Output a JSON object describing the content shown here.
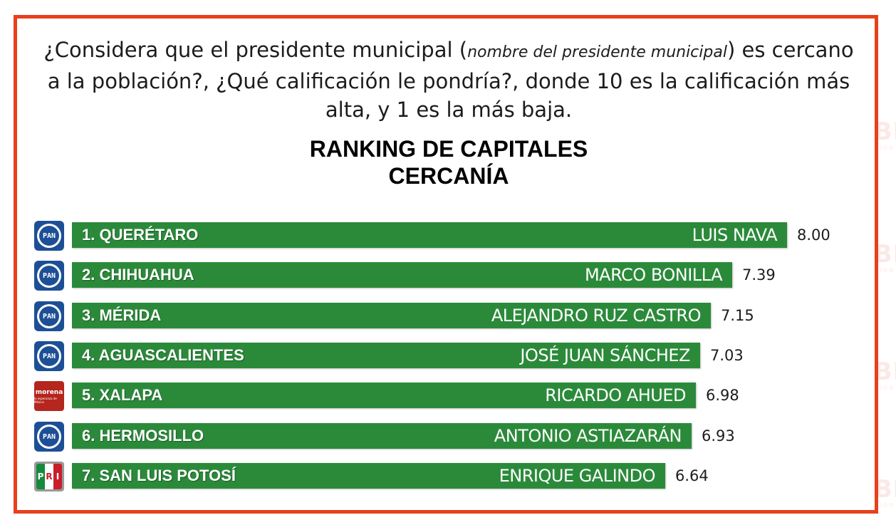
{
  "question": {
    "part1": "¿Considera que el presidente municipal (",
    "italic": "nombre del presidente municipal",
    "part2": ") es cercano a la población?, ¿Qué calificación le pondría?, donde 10 es la calificación más alta, y 1 es la más baja."
  },
  "watermark": {
    "text": "RUBRUM",
    "sub": "INFORMACIÓN QUE DA PODER"
  },
  "colors": {
    "bar": "#2b8a3a",
    "frame": "#e8401c",
    "pan": "#1d4f96",
    "morena": "#b5261e"
  },
  "chart_data": {
    "type": "bar",
    "orientation": "horizontal",
    "title": "RANKING DE CAPITALES",
    "subtitle": "CERCANÍA",
    "xlim": [
      0,
      8
    ],
    "categories": [
      "1. QUERÉTARO",
      "2. CHIHUAHUA",
      "3. MÉRIDA",
      "4. AGUASCALIENTES",
      "5. XALAPA",
      "6. HERMOSILLO",
      "7. SAN LUIS POTOSÍ"
    ],
    "labels": [
      "LUIS NAVA",
      "MARCO BONILLA",
      "ALEJANDRO RUZ CASTRO",
      "JOSÉ JUAN SÁNCHEZ",
      "RICARDO AHUED",
      "ANTONIO ASTIAZARÁN",
      "ENRIQUE GALINDO"
    ],
    "values": [
      8.0,
      7.39,
      7.15,
      7.03,
      6.98,
      6.93,
      6.64
    ],
    "value_labels": [
      "8.00",
      "7.39",
      "7.15",
      "7.03",
      "6.98",
      "6.93",
      "6.64"
    ],
    "party_logos": [
      "pan-logo",
      "pan-logo",
      "pan-logo",
      "pan-logo",
      "morena-logo",
      "pan-logo",
      "pri-logo"
    ]
  }
}
